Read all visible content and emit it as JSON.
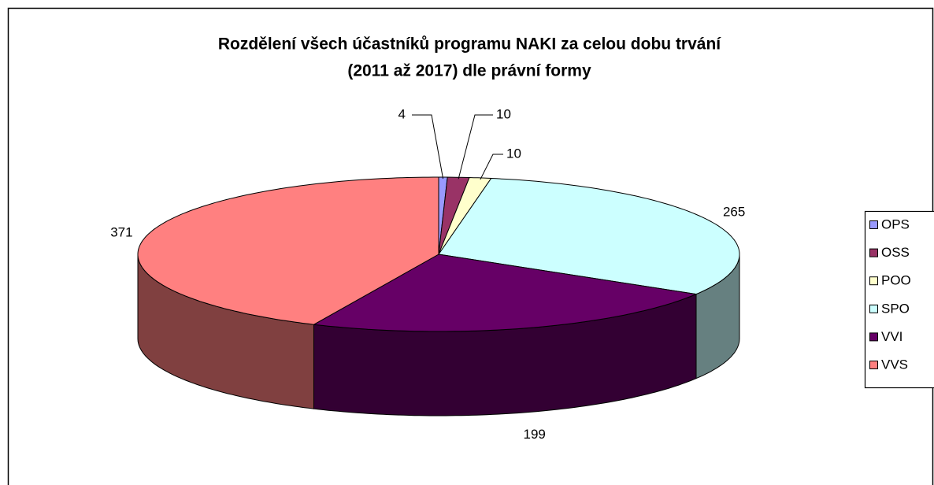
{
  "chart_data": {
    "type": "pie3d",
    "title": [
      "Rozdělení všech účastníků programu NAKI za celou dobu trvání",
      "(2011 až 2017) dle právní formy"
    ],
    "categories": [
      "OPS",
      "OSS",
      "POO",
      "SPO",
      "VVI",
      "VVS"
    ],
    "values": [
      4,
      10,
      10,
      265,
      199,
      371
    ],
    "colors": [
      "#9999ff",
      "#993366",
      "#ffffcc",
      "#ccffff",
      "#660066",
      "#ff8080"
    ],
    "legend": "right"
  }
}
